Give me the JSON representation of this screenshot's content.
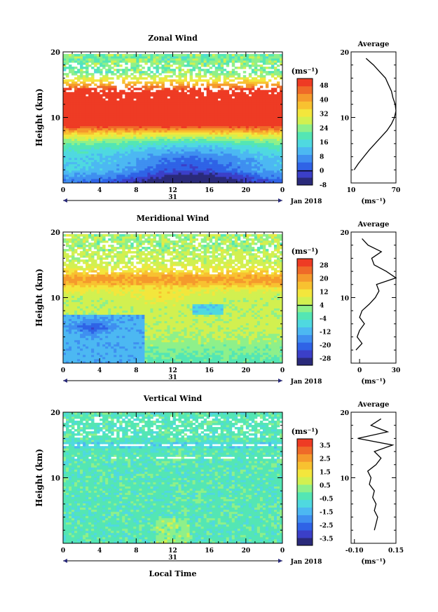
{
  "units_label": "(ms⁻¹)",
  "x_axis": {
    "xlabel": "Local Time",
    "date_label": "Jan 2018",
    "day_label": "31",
    "ticks": [
      "0",
      "4",
      "8",
      "12",
      "16",
      "20",
      "0"
    ]
  },
  "chart_data": [
    {
      "type": "heatmap",
      "title": "Zonal Wind",
      "ylabel": "Height (km)",
      "ylim": [
        0,
        20
      ],
      "y_ticks": [
        "20",
        "10"
      ],
      "colorbar": {
        "labels": [
          "48",
          "40",
          "32",
          "24",
          "16",
          "8",
          "0",
          "-8"
        ],
        "range": [
          -8,
          52
        ]
      },
      "profile": {
        "title": "Average",
        "xlabel": "(ms⁻¹)",
        "x_ticks": [
          "10",
          "70"
        ],
        "xlim": [
          10,
          70
        ],
        "heights": [
          2,
          3,
          4,
          5,
          6,
          7,
          8,
          9,
          10,
          11,
          12,
          13,
          14,
          15,
          16,
          17,
          18,
          19
        ],
        "values": [
          14,
          20,
          27,
          34,
          42,
          50,
          58,
          64,
          68,
          70,
          69,
          66,
          64,
          60,
          56,
          48,
          40,
          30
        ]
      }
    },
    {
      "type": "heatmap",
      "title": "Meridional Wind",
      "ylabel": "Height (km)",
      "ylim": [
        0,
        20
      ],
      "y_ticks": [
        "20",
        "10"
      ],
      "colorbar": {
        "labels": [
          "28",
          "20",
          "12",
          "4",
          "-4",
          "-12",
          "-20",
          "-28"
        ],
        "range": [
          -32,
          32
        ]
      },
      "profile": {
        "title": "Average",
        "xlabel": "(ms⁻¹)",
        "x_ticks": [
          "0",
          "30"
        ],
        "xlim": [
          -7,
          30
        ],
        "heights": [
          2,
          3,
          4,
          5,
          6,
          7,
          8,
          9,
          10,
          11,
          12,
          13,
          14,
          15,
          16,
          17,
          18,
          19
        ],
        "values": [
          -3,
          2,
          -2,
          0,
          4,
          0,
          2,
          8,
          13,
          16,
          14,
          30,
          22,
          12,
          10,
          18,
          7,
          2
        ]
      }
    },
    {
      "type": "heatmap",
      "title": "Vertical Wind",
      "ylabel": "Height (km)",
      "ylim": [
        0,
        20
      ],
      "y_ticks": [
        "20",
        "10"
      ],
      "colorbar": {
        "labels": [
          "3.5",
          "2.5",
          "1.5",
          "0.5",
          "-0.5",
          "-1.5",
          "-2.5",
          "-3.5"
        ],
        "range": [
          -4,
          4
        ]
      },
      "profile": {
        "title": "Average",
        "xlabel": "(ms⁻¹)",
        "x_ticks": [
          "-0.10",
          "0.15"
        ],
        "xlim": [
          -0.12,
          0.15
        ],
        "heights": [
          2,
          3,
          4,
          5,
          6,
          7,
          8,
          9,
          10,
          11,
          12,
          13,
          14,
          15,
          16,
          17,
          18,
          19
        ],
        "values": [
          0.02,
          0.03,
          0.04,
          0.02,
          0.03,
          0.01,
          0.02,
          -0.01,
          0.0,
          -0.02,
          0.03,
          0.06,
          0.02,
          0.13,
          -0.08,
          0.1,
          0.0,
          0.06
        ]
      }
    }
  ]
}
